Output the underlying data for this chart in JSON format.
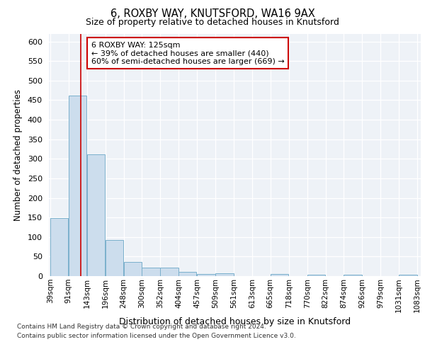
{
  "title1": "6, ROXBY WAY, KNUTSFORD, WA16 9AX",
  "title2": "Size of property relative to detached houses in Knutsford",
  "xlabel": "Distribution of detached houses by size in Knutsford",
  "ylabel": "Number of detached properties",
  "bar_color": "#ccdded",
  "bar_edge_color": "#7ab0cc",
  "bins": [
    39,
    91,
    143,
    196,
    248,
    300,
    352,
    404,
    457,
    509,
    561,
    613,
    665,
    718,
    770,
    822,
    874,
    926,
    979,
    1031,
    1083
  ],
  "bin_labels": [
    "39sqm",
    "91sqm",
    "143sqm",
    "196sqm",
    "248sqm",
    "300sqm",
    "352sqm",
    "404sqm",
    "457sqm",
    "509sqm",
    "561sqm",
    "613sqm",
    "665sqm",
    "718sqm",
    "770sqm",
    "822sqm",
    "874sqm",
    "926sqm",
    "979sqm",
    "1031sqm",
    "1083sqm"
  ],
  "values": [
    148,
    462,
    312,
    92,
    36,
    22,
    22,
    10,
    5,
    7,
    0,
    0,
    5,
    0,
    3,
    0,
    4,
    0,
    0,
    4
  ],
  "vline_x": 125,
  "vline_color": "#cc0000",
  "annotation_line1": "6 ROXBY WAY: 125sqm",
  "annotation_line2": "← 39% of detached houses are smaller (440)",
  "annotation_line3": "60% of semi-detached houses are larger (669) →",
  "annotation_box_color": "white",
  "annotation_box_edge": "#cc0000",
  "footer1": "Contains HM Land Registry data © Crown copyright and database right 2024.",
  "footer2": "Contains public sector information licensed under the Open Government Licence v3.0.",
  "background_color": "#eef2f7",
  "ylim": [
    0,
    620
  ],
  "yticks": [
    0,
    50,
    100,
    150,
    200,
    250,
    300,
    350,
    400,
    450,
    500,
    550,
    600
  ]
}
